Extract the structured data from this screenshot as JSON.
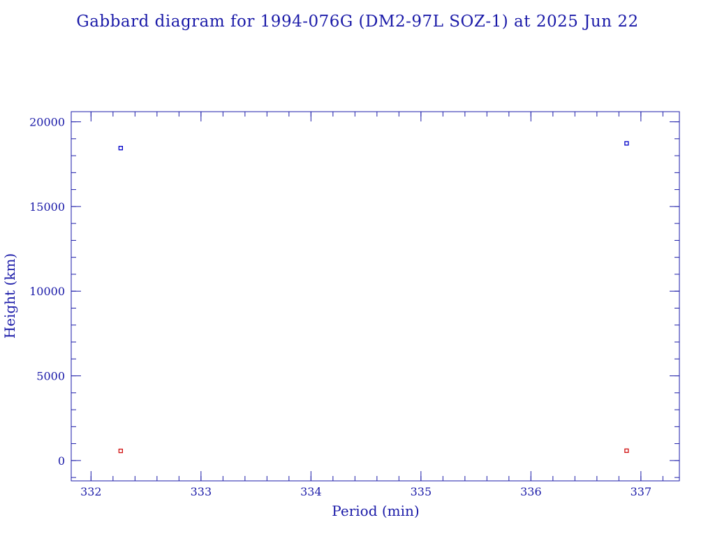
{
  "chart_data": {
    "type": "scatter",
    "title": "Gabbard diagram for 1994-076G (DM2-97L SOZ-1) at 2025 Jun 22",
    "xlabel": "Period (min)",
    "ylabel": "Height (km)",
    "xlim": [
      331.82,
      337.35
    ],
    "ylim": [
      -1200,
      20600
    ],
    "x_ticks": [
      332,
      333,
      334,
      335,
      336,
      337
    ],
    "x_tick_labels": [
      "332",
      "333",
      "334",
      "335",
      "336",
      "337"
    ],
    "y_ticks": [
      0,
      5000,
      10000,
      15000,
      20000
    ],
    "y_tick_labels": [
      "0",
      "5000",
      "10000",
      "15000",
      "20000"
    ],
    "x_minor_step": 0.2,
    "y_minor_step": 1000,
    "grid": false,
    "series": [
      {
        "color": "#0000c8",
        "points": [
          {
            "x": 332.27,
            "y": 18450
          },
          {
            "x": 336.87,
            "y": 18730
          }
        ]
      },
      {
        "color": "#d01010",
        "points": [
          {
            "x": 332.27,
            "y": 570
          },
          {
            "x": 336.87,
            "y": 580
          }
        ]
      }
    ]
  }
}
